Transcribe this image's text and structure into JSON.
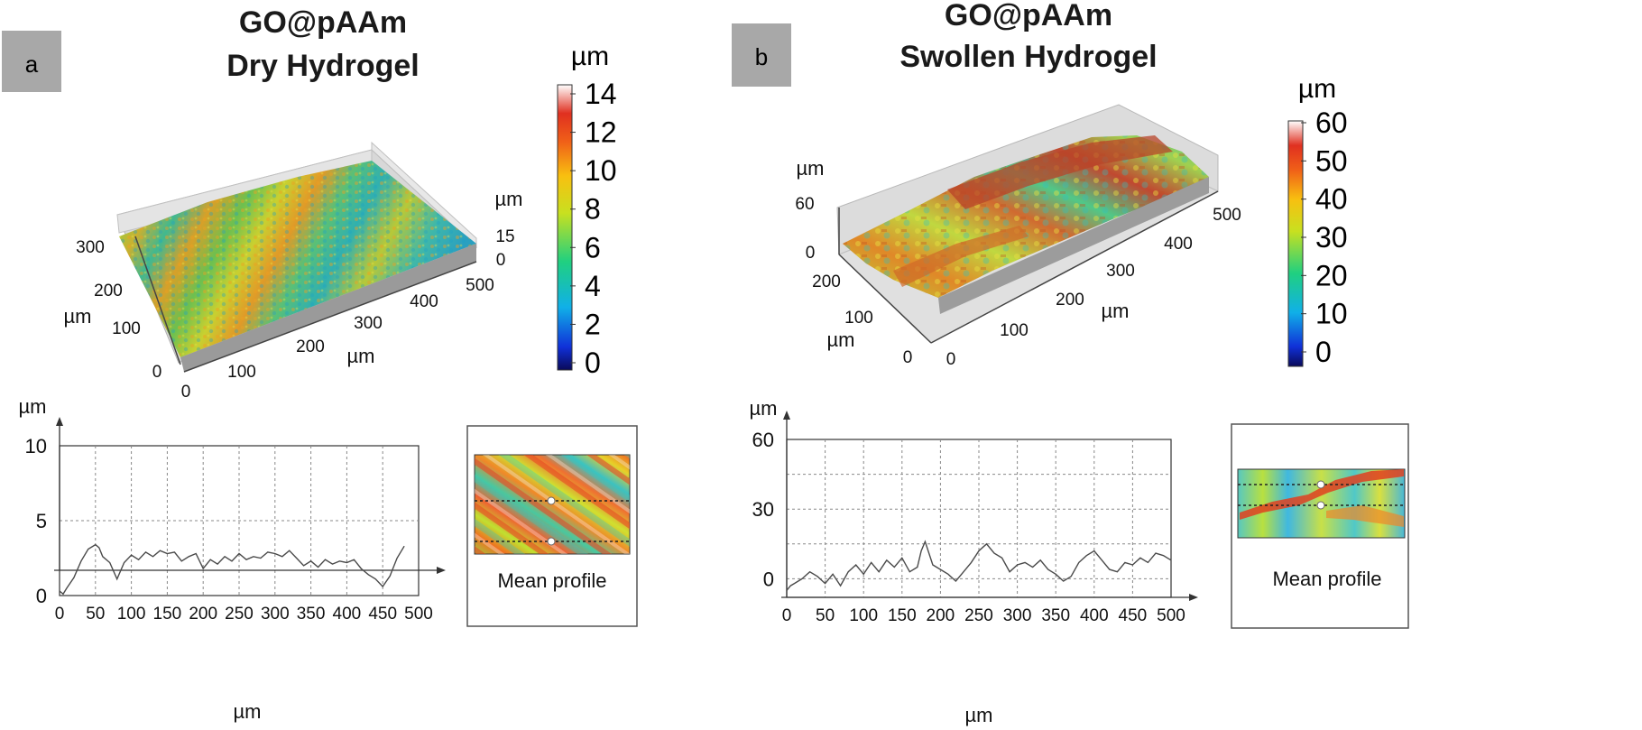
{
  "panels": [
    {
      "id": "a",
      "panel_label": "a",
      "title_line1": "GO@pAAm",
      "title_line2": "Dry Hydrogel",
      "colorbar": {
        "unit": "µm",
        "ticks": [
          "14",
          "12",
          "10",
          "8",
          "6",
          "4",
          "2",
          "0"
        ]
      },
      "surface3d": {
        "x_ticks": [
          "0",
          "100",
          "200",
          "300",
          "400",
          "500"
        ],
        "x_unit": "µm",
        "y_ticks": [
          "0",
          "100",
          "200",
          "300"
        ],
        "y_unit": "µm",
        "z_ticks": [
          "0",
          "15"
        ],
        "z_unit": "µm"
      },
      "profile": {
        "y_unit": "µm",
        "x_unit": "µm",
        "y_ticks": [
          "0",
          "5",
          "10"
        ],
        "x_ticks": [
          "0",
          "50",
          "100",
          "150",
          "200",
          "250",
          "300",
          "350",
          "400",
          "450",
          "500"
        ]
      },
      "inset_label": "Mean profile"
    },
    {
      "id": "b",
      "panel_label": "b",
      "title_line1": "GO@pAAm",
      "title_line2": "Swollen Hydrogel",
      "colorbar": {
        "unit": "µm",
        "ticks": [
          "60",
          "50",
          "40",
          "30",
          "20",
          "10",
          "0"
        ]
      },
      "surface3d": {
        "x_ticks": [
          "0",
          "100",
          "200",
          "300",
          "400",
          "500"
        ],
        "x_unit": "µm",
        "y_ticks": [
          "0",
          "100",
          "200"
        ],
        "y_unit": "µm",
        "z_ticks": [
          "0",
          "60"
        ],
        "z_unit": "µm"
      },
      "profile": {
        "y_unit": "µm",
        "x_unit": "µm",
        "y_ticks": [
          "0",
          "30",
          "60"
        ],
        "x_ticks": [
          "0",
          "50",
          "100",
          "150",
          "200",
          "250",
          "300",
          "350",
          "400",
          "450",
          "500"
        ]
      },
      "inset_label": "Mean profile"
    }
  ],
  "chart_data": [
    {
      "type": "line",
      "panel": "a",
      "xlabel": "µm",
      "ylabel": "µm",
      "xlim": [
        0,
        500
      ],
      "ylim": [
        0,
        10
      ],
      "grid": true,
      "x": [
        0,
        5,
        10,
        20,
        30,
        40,
        50,
        55,
        60,
        70,
        80,
        90,
        100,
        110,
        120,
        130,
        140,
        150,
        160,
        170,
        180,
        190,
        200,
        210,
        220,
        230,
        240,
        250,
        260,
        270,
        280,
        290,
        300,
        310,
        320,
        330,
        340,
        350,
        360,
        370,
        380,
        390,
        400,
        410,
        420,
        430,
        440,
        450,
        460,
        470,
        480
      ],
      "y": [
        0.3,
        0.1,
        0.5,
        1.2,
        2.3,
        3.1,
        3.4,
        3.2,
        2.6,
        2.2,
        1.1,
        2.2,
        2.7,
        2.4,
        2.9,
        2.6,
        3.0,
        2.8,
        2.9,
        2.3,
        2.6,
        2.8,
        1.8,
        2.4,
        2.1,
        2.6,
        2.3,
        2.8,
        2.4,
        2.6,
        2.5,
        2.9,
        2.8,
        2.6,
        3.0,
        2.5,
        2.0,
        2.3,
        1.9,
        2.4,
        2.1,
        2.3,
        2.2,
        2.4,
        1.8,
        1.4,
        1.1,
        0.6,
        1.3,
        2.5,
        3.3
      ]
    },
    {
      "type": "line",
      "panel": "b",
      "xlabel": "µm",
      "ylabel": "µm",
      "xlim": [
        0,
        500
      ],
      "ylim": [
        -8,
        60
      ],
      "grid": true,
      "x": [
        0,
        5,
        10,
        20,
        30,
        40,
        50,
        60,
        70,
        80,
        90,
        100,
        110,
        120,
        130,
        140,
        150,
        160,
        170,
        175,
        180,
        190,
        200,
        210,
        220,
        230,
        240,
        250,
        260,
        270,
        280,
        290,
        300,
        310,
        320,
        330,
        340,
        350,
        360,
        370,
        380,
        390,
        400,
        410,
        420,
        430,
        440,
        450,
        460,
        470,
        480,
        490,
        500
      ],
      "y": [
        -5,
        -3,
        -2,
        0,
        3,
        1,
        -2,
        2,
        -3,
        3,
        6,
        2,
        7,
        3,
        8,
        5,
        9,
        3,
        5,
        12,
        16,
        6,
        4,
        2,
        -1,
        3,
        7,
        12,
        15,
        11,
        9,
        3,
        6,
        7,
        5,
        8,
        4,
        2,
        -1,
        1,
        7,
        10,
        12,
        8,
        4,
        3,
        7,
        6,
        9,
        7,
        11,
        10,
        8
      ]
    }
  ]
}
